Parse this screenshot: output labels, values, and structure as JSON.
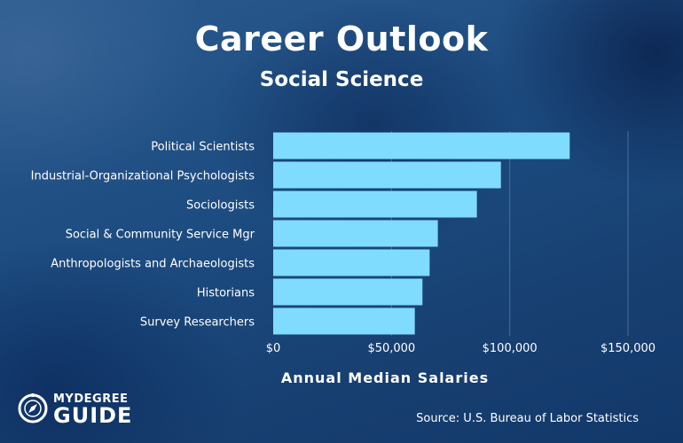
{
  "header": {
    "title": "Career Outlook",
    "subtitle": "Social Science"
  },
  "chart_data": {
    "type": "bar",
    "orientation": "horizontal",
    "categories": [
      "Political Scientists",
      "Industrial-Organizational Psychologists",
      "Sociologists",
      "Social & Community Service Mgr",
      "Anthropologists and Archaeologists",
      "Historians",
      "Survey Researchers"
    ],
    "values": [
      125350,
      96270,
      86110,
      69600,
      66130,
      63100,
      59870
    ],
    "xlim": [
      0,
      150000
    ],
    "xticks": [
      0,
      50000,
      100000,
      150000
    ],
    "xtick_labels": [
      "$0",
      "$50,000",
      "$100,000",
      "$150,000"
    ],
    "xlabel": "Annual Median Salaries",
    "grid": true,
    "bar_color": "#7fdcff",
    "grid_color": "#4a6f9c"
  },
  "footer": {
    "source": "Source: U.S. Bureau of Labor Statistics",
    "logo_top": "MYDEGREE",
    "logo_main": "GUIDE",
    "logo_icon": "compass-icon"
  }
}
